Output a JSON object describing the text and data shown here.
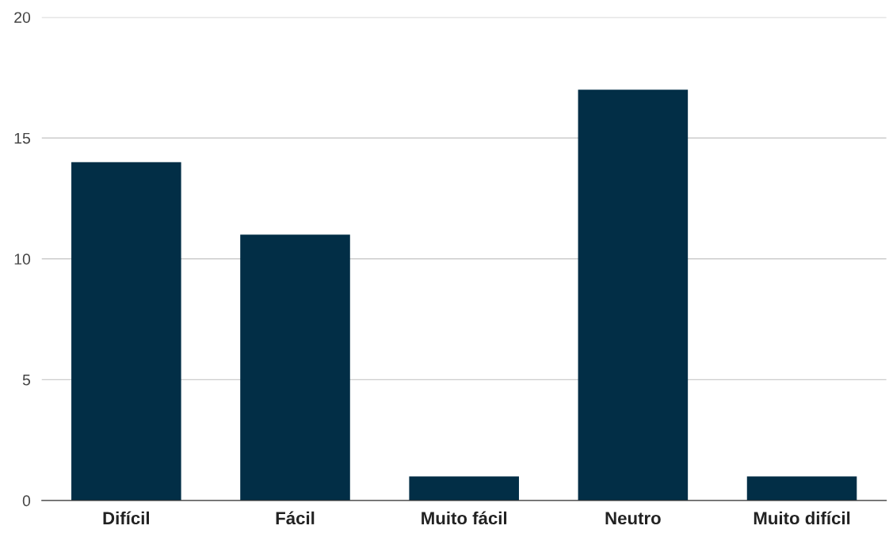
{
  "chart_data": {
    "type": "bar",
    "categories": [
      "Difícil",
      "Fácil",
      "Muito fácil",
      "Neutro",
      "Muito difícil"
    ],
    "values": [
      14,
      11,
      1,
      17,
      1
    ],
    "color": "#022e46",
    "ylim": [
      0,
      20
    ],
    "yticks": [
      0,
      5,
      10,
      15,
      20
    ],
    "grid": "y",
    "legend": false
  }
}
